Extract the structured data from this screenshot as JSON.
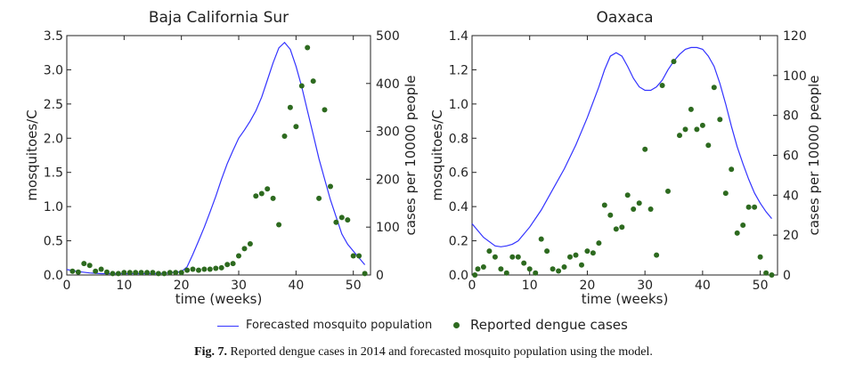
{
  "chart_data": [
    {
      "type": "line+scatter",
      "title": "Baja California Sur",
      "xlabel": "time (weeks)",
      "ylabel": "mosquitoes/C",
      "y2label": "cases per 10000 people",
      "xlim": [
        0,
        53
      ],
      "ylim": [
        0,
        3.5
      ],
      "y2lim": [
        0,
        500
      ],
      "xticks": [
        "0",
        "10",
        "20",
        "30",
        "40",
        "50"
      ],
      "yticks": [
        "0.0",
        "0.5",
        "1.0",
        "1.5",
        "2.0",
        "2.5",
        "3.0",
        "3.5"
      ],
      "y2ticks": [
        "0",
        "100",
        "200",
        "300",
        "400",
        "500"
      ],
      "line": {
        "name": "Forecasted mosquito population",
        "x": [
          0,
          2,
          4,
          6,
          8,
          10,
          12,
          14,
          16,
          18,
          20,
          21,
          22,
          23,
          24,
          25,
          26,
          27,
          28,
          29,
          30,
          31,
          32,
          33,
          34,
          35,
          36,
          37,
          38,
          39,
          40,
          41,
          42,
          43,
          44,
          45,
          46,
          47,
          48,
          49,
          50,
          51,
          52
        ],
        "y": [
          0.08,
          0.05,
          0.03,
          0.02,
          0.02,
          0.02,
          0.02,
          0.02,
          0.02,
          0.03,
          0.05,
          0.12,
          0.3,
          0.5,
          0.7,
          0.92,
          1.15,
          1.4,
          1.63,
          1.82,
          2.0,
          2.12,
          2.25,
          2.4,
          2.6,
          2.85,
          3.1,
          3.32,
          3.4,
          3.3,
          3.05,
          2.75,
          2.4,
          2.05,
          1.7,
          1.4,
          1.1,
          0.85,
          0.6,
          0.45,
          0.35,
          0.25,
          0.15
        ]
      },
      "scatter": {
        "name": "Reported dengue cases",
        "x": [
          1,
          2,
          3,
          4,
          5,
          6,
          7,
          8,
          9,
          10,
          11,
          12,
          13,
          14,
          15,
          16,
          17,
          18,
          19,
          20,
          21,
          22,
          23,
          24,
          25,
          26,
          27,
          28,
          29,
          30,
          31,
          32,
          33,
          34,
          35,
          36,
          37,
          38,
          39,
          40,
          41,
          42,
          43,
          44,
          45,
          46,
          47,
          48,
          49,
          50,
          51,
          52
        ],
        "y": [
          8,
          6,
          24,
          20,
          8,
          12,
          6,
          3,
          3,
          5,
          5,
          5,
          5,
          5,
          5,
          3,
          3,
          5,
          5,
          5,
          10,
          12,
          10,
          12,
          12,
          14,
          15,
          22,
          24,
          40,
          55,
          65,
          165,
          170,
          180,
          160,
          105,
          290,
          350,
          310,
          395,
          475,
          405,
          160,
          345,
          185,
          110,
          120,
          115,
          40,
          40,
          3
        ]
      }
    },
    {
      "type": "line+scatter",
      "title": "Oaxaca",
      "xlabel": "time (weeks)",
      "ylabel": "mosquitoes/C",
      "y2label": "cases per 10000 people",
      "xlim": [
        0,
        53
      ],
      "ylim": [
        0,
        1.4
      ],
      "y2lim": [
        0,
        120
      ],
      "xticks": [
        "0",
        "10",
        "20",
        "30",
        "40",
        "50"
      ],
      "yticks": [
        "0.0",
        "0.2",
        "0.4",
        "0.6",
        "0.8",
        "1.0",
        "1.2",
        "1.4"
      ],
      "y2ticks": [
        "0",
        "20",
        "40",
        "60",
        "80",
        "100",
        "120"
      ],
      "line": {
        "name": "Forecasted mosquito population",
        "x": [
          0,
          2,
          4,
          5,
          6,
          7,
          8,
          10,
          12,
          14,
          16,
          18,
          20,
          22,
          23,
          24,
          25,
          26,
          27,
          28,
          29,
          30,
          31,
          32,
          33,
          34,
          35,
          36,
          37,
          38,
          39,
          40,
          41,
          42,
          43,
          44,
          45,
          46,
          47,
          48,
          49,
          50,
          51,
          52
        ],
        "y": [
          0.3,
          0.22,
          0.17,
          0.165,
          0.17,
          0.18,
          0.2,
          0.28,
          0.38,
          0.5,
          0.62,
          0.76,
          0.92,
          1.1,
          1.2,
          1.28,
          1.3,
          1.28,
          1.22,
          1.15,
          1.1,
          1.08,
          1.08,
          1.1,
          1.14,
          1.2,
          1.25,
          1.29,
          1.32,
          1.33,
          1.33,
          1.32,
          1.28,
          1.22,
          1.12,
          1.0,
          0.87,
          0.75,
          0.65,
          0.56,
          0.48,
          0.42,
          0.37,
          0.33
        ]
      },
      "scatter": {
        "name": "Reported dengue cases",
        "x": [
          0.5,
          1,
          2,
          3,
          4,
          5,
          6,
          7,
          8,
          9,
          10,
          11,
          12,
          13,
          14,
          15,
          16,
          17,
          18,
          19,
          20,
          21,
          22,
          23,
          24,
          25,
          26,
          27,
          28,
          29,
          30,
          31,
          32,
          33,
          34,
          35,
          36,
          37,
          38,
          39,
          40,
          41,
          42,
          43,
          44,
          45,
          46,
          47,
          48,
          49,
          50,
          51,
          52
        ],
        "y": [
          0,
          3,
          4,
          12,
          9,
          3,
          1,
          9,
          9,
          6,
          3,
          1,
          18,
          12,
          3,
          2,
          4,
          9,
          10,
          5,
          12,
          11,
          16,
          35,
          30,
          23,
          24,
          40,
          33,
          36,
          63,
          33,
          10,
          95,
          42,
          107,
          70,
          73,
          83,
          73,
          75,
          65,
          94,
          78,
          41,
          53,
          21,
          25,
          34,
          34,
          9,
          1,
          0
        ]
      }
    }
  ],
  "legend": {
    "line_label": "Forecasted mosquito population",
    "scatter_label": "Reported dengue cases"
  },
  "colors": {
    "line": "#3333ff",
    "scatter": "#2d6a1f",
    "axis": "#222222"
  },
  "caption": {
    "label": "Fig. 7.",
    "text": "Reported dengue cases in 2014 and forecasted mosquito population using the model."
  }
}
